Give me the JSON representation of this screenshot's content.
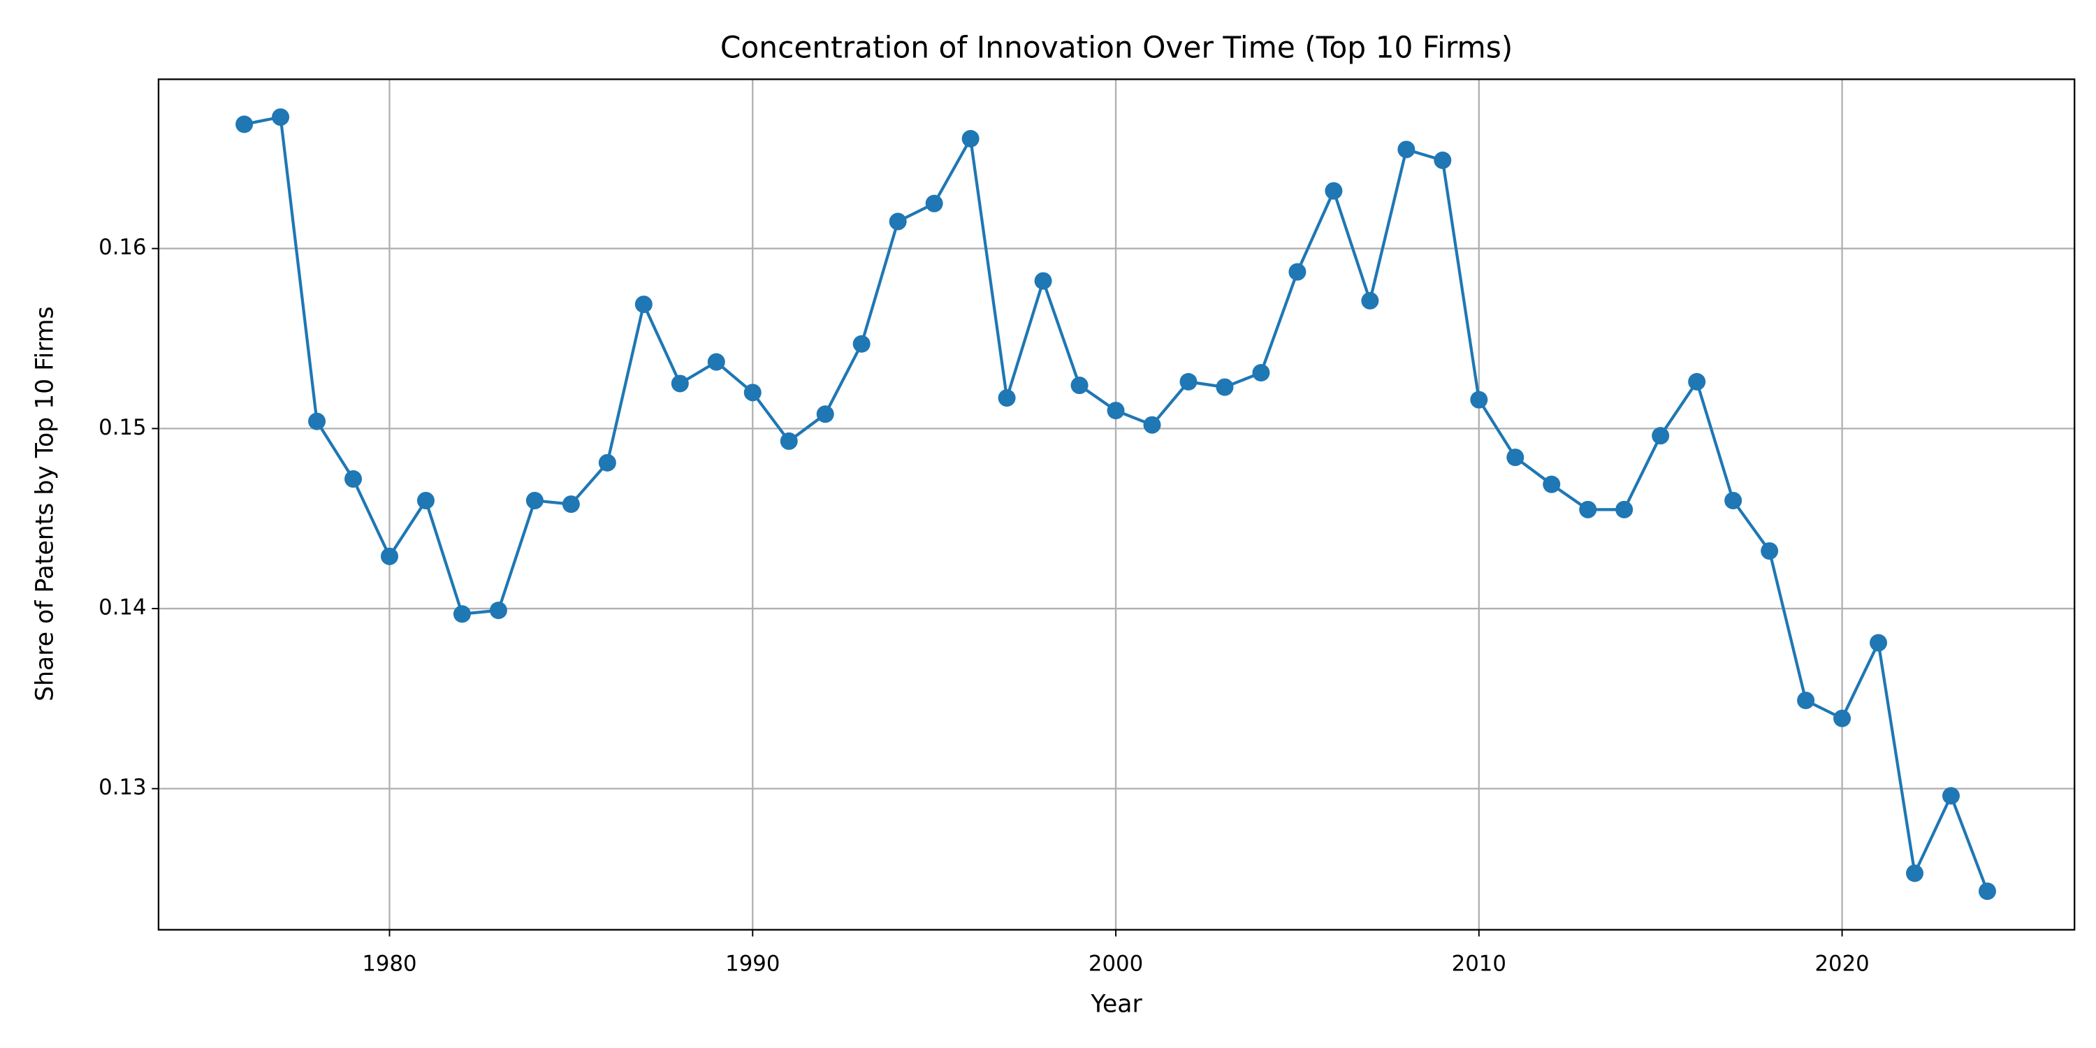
{
  "chart_data": {
    "type": "line",
    "title": "Concentration of Innovation Over Time (Top 10 Firms)",
    "x_label": "Year",
    "y_label": "Share of Patents by Top 10 Firms",
    "x": [
      1976,
      1977,
      1978,
      1979,
      1980,
      1981,
      1982,
      1983,
      1984,
      1985,
      1986,
      1987,
      1988,
      1989,
      1990,
      1991,
      1992,
      1993,
      1994,
      1995,
      1996,
      1997,
      1998,
      1999,
      2000,
      2001,
      2002,
      2003,
      2004,
      2005,
      2006,
      2007,
      2008,
      2009,
      2010,
      2011,
      2012,
      2013,
      2014,
      2015,
      2016,
      2017,
      2018,
      2019,
      2020,
      2021,
      2022,
      2023,
      2024
    ],
    "series": [
      {
        "name": "Share of Patents by Top 10 Firms",
        "color": "#1f77b4",
        "values": [
          0.1669,
          0.1673,
          0.1504,
          0.1472,
          0.1429,
          0.146,
          0.1397,
          0.1399,
          0.146,
          0.1458,
          0.1481,
          0.1569,
          0.1525,
          0.1537,
          0.152,
          0.1493,
          0.1508,
          0.1547,
          0.1615,
          0.1625,
          0.1661,
          0.1517,
          0.1582,
          0.1524,
          0.151,
          0.1502,
          0.1526,
          0.1523,
          0.1531,
          0.1587,
          0.1632,
          0.1571,
          0.1655,
          0.1649,
          0.1516,
          0.1484,
          0.1469,
          0.1455,
          0.1455,
          0.1496,
          0.1526,
          0.146,
          0.1432,
          0.1349,
          0.1339,
          0.1381,
          0.1253,
          0.1296,
          0.1243
        ]
      }
    ],
    "xlim": [
      1973.64,
      2026.4
    ],
    "ylim": [
      0.12216,
      0.1694
    ],
    "xticks": [
      1980,
      1990,
      2000,
      2010,
      2020
    ],
    "yticks": [
      0.13,
      0.14,
      0.15,
      0.16
    ],
    "grid": true,
    "marker": "circle"
  }
}
